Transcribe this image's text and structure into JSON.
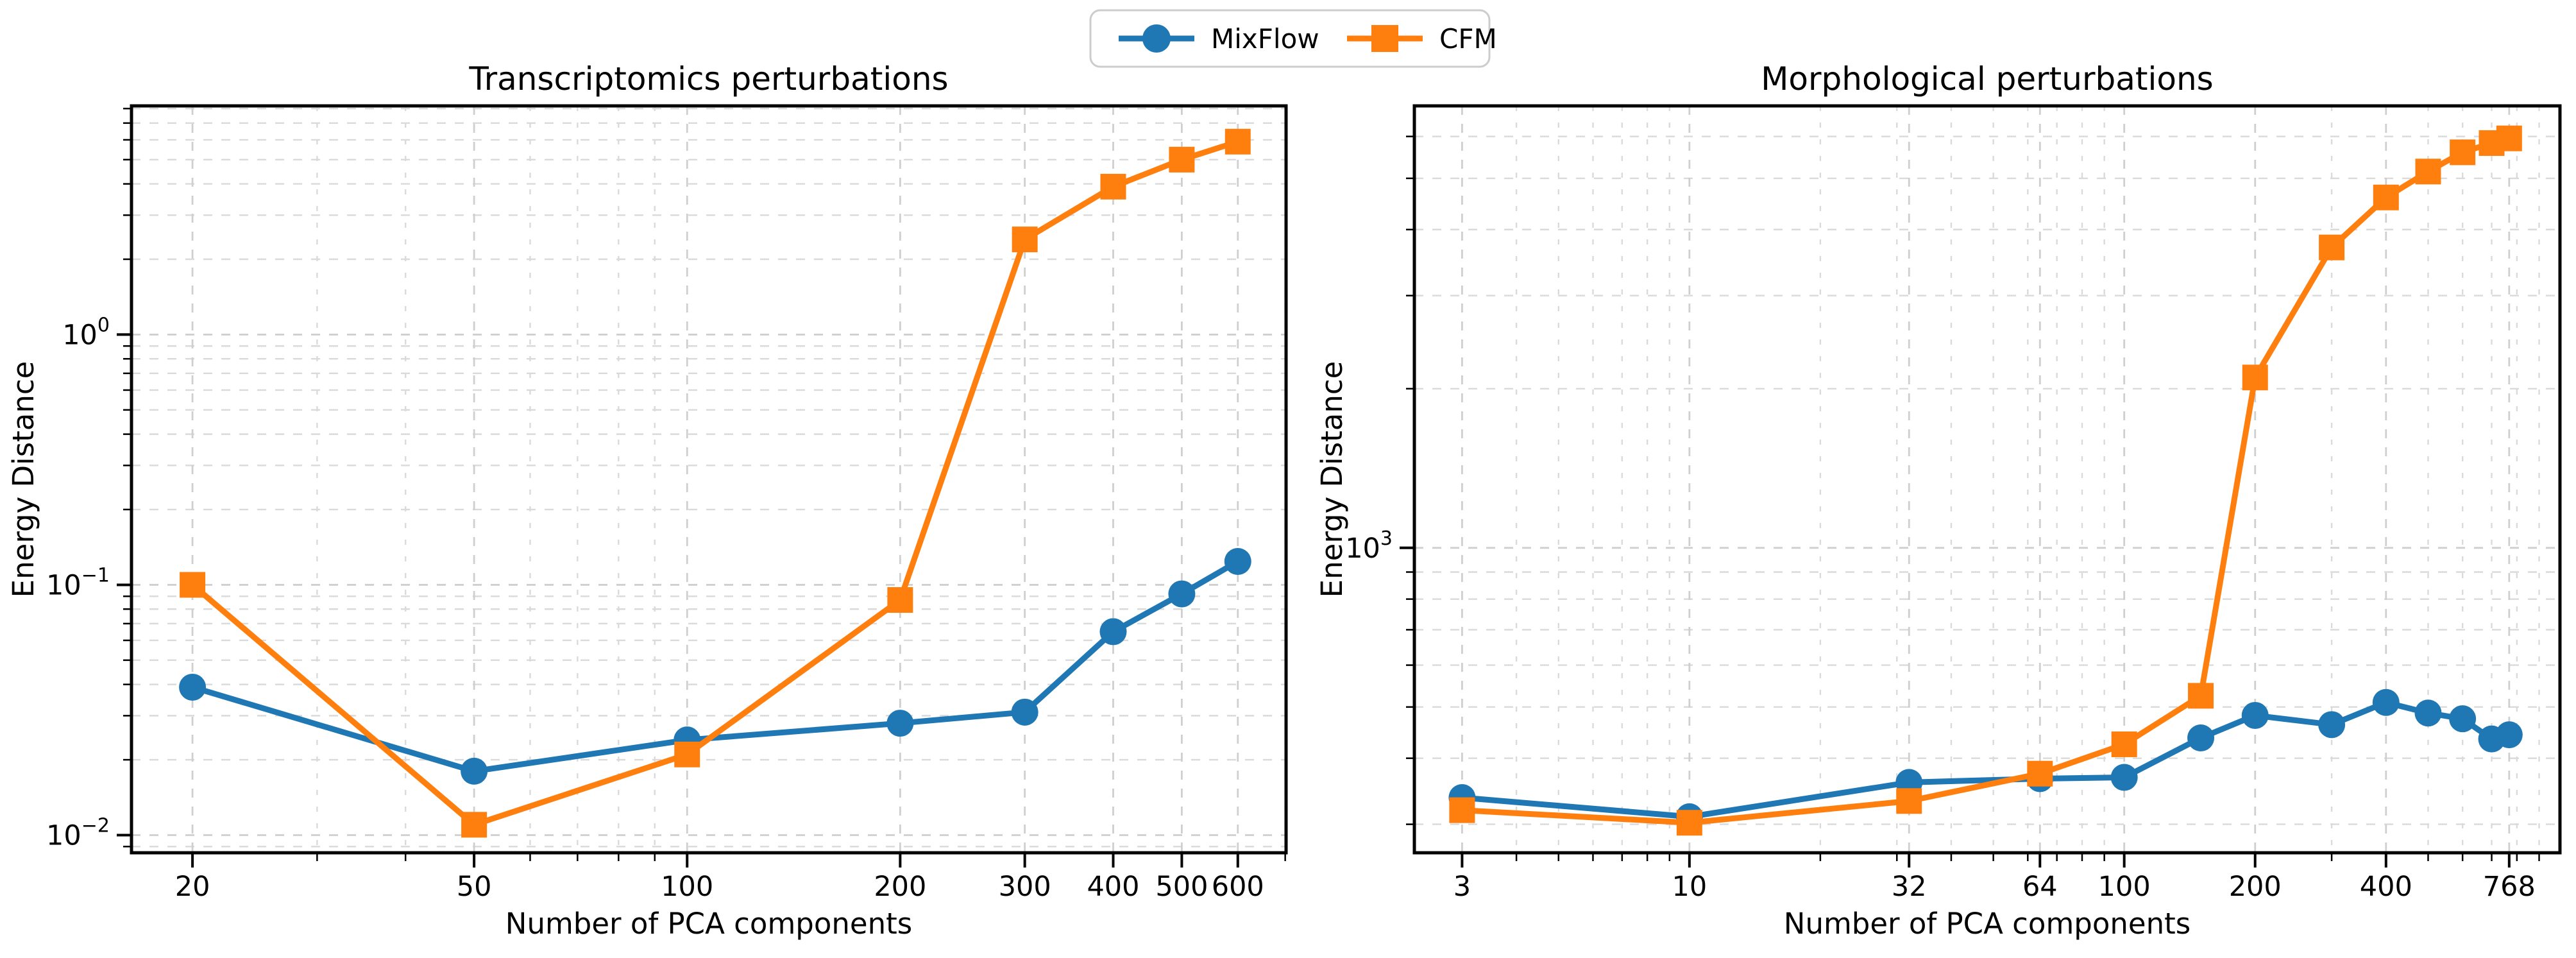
{
  "figure": {
    "background": "#ffffff",
    "colors": {
      "mixflow": "#1f77b4",
      "cfm": "#ff7f0e",
      "spine": "#000000",
      "grid_major": "#cfcfcf",
      "grid_minor": "#dadada",
      "legend_border": "#cccccc"
    },
    "legend": {
      "items": [
        {
          "label": "MixFlow",
          "color": "#1f77b4",
          "marker": "circle"
        },
        {
          "label": "CFM",
          "color": "#ff7f0e",
          "marker": "square"
        }
      ]
    }
  },
  "chart_data": [
    {
      "type": "line",
      "title": "Transcriptomics perturbations",
      "xlabel": "Number of PCA components",
      "ylabel": "Energy Distance",
      "xscale": "log",
      "yscale": "log",
      "grid": true,
      "legend_position": "top-center-figure",
      "xlim": [
        16.4,
        702
      ],
      "ylim": [
        0.0085,
        8.2
      ],
      "xticks": [
        {
          "value": 20,
          "label": "20"
        },
        {
          "value": 50,
          "label": "50"
        },
        {
          "value": 100,
          "label": "100"
        },
        {
          "value": 200,
          "label": "200"
        },
        {
          "value": 300,
          "label": "300"
        },
        {
          "value": 400,
          "label": "400"
        },
        {
          "value": 500,
          "label": "500"
        },
        {
          "value": 600,
          "label": "600"
        }
      ],
      "yticks": [
        {
          "value": 1,
          "base": "10",
          "exp": "0"
        },
        {
          "value": 0.1,
          "base": "10",
          "exp": "−1"
        },
        {
          "value": 0.01,
          "base": "10",
          "exp": "−2"
        }
      ],
      "x": [
        20,
        50,
        100,
        200,
        300,
        400,
        500,
        600
      ],
      "series": [
        {
          "name": "MixFlow",
          "marker": "circle",
          "color": "#1f77b4",
          "values": [
            0.039,
            0.018,
            0.024,
            0.028,
            0.031,
            0.065,
            0.092,
            0.124
          ]
        },
        {
          "name": "CFM",
          "marker": "square",
          "color": "#ff7f0e",
          "values": [
            0.1,
            0.011,
            0.021,
            0.087,
            2.4,
            3.9,
            5.0,
            5.9
          ]
        }
      ]
    },
    {
      "type": "line",
      "title": "Morphological perturbations",
      "xlabel": "Number of PCA components",
      "ylabel": "Energy Distance",
      "xscale": "log",
      "yscale": "log",
      "grid": true,
      "xlim": [
        2.33,
        1005
      ],
      "ylim": [
        265,
        6855
      ],
      "xticks": [
        {
          "value": 3,
          "label": "3"
        },
        {
          "value": 10,
          "label": "10"
        },
        {
          "value": 32,
          "label": "32"
        },
        {
          "value": 64,
          "label": "64"
        },
        {
          "value": 100,
          "label": "100"
        },
        {
          "value": 200,
          "label": "200"
        },
        {
          "value": 400,
          "label": "400"
        },
        {
          "value": 768,
          "label": "768"
        }
      ],
      "yticks": [
        {
          "value": 1000,
          "base": "10",
          "exp": "3"
        }
      ],
      "x": [
        3,
        10,
        32,
        64,
        100,
        150,
        200,
        300,
        400,
        500,
        600,
        700,
        768
      ],
      "series": [
        {
          "name": "MixFlow",
          "marker": "circle",
          "color": "#1f77b4",
          "values": [
            337,
            310,
            360,
            366,
            368,
            437,
            482,
            463,
            510,
            487,
            475,
            435,
            443
          ]
        },
        {
          "name": "CFM",
          "marker": "square",
          "color": "#ff7f0e",
          "values": [
            319,
            302,
            332,
            374,
            425,
            525,
            2100,
            3700,
            4600,
            5150,
            5600,
            5830,
            5950
          ]
        }
      ]
    }
  ]
}
